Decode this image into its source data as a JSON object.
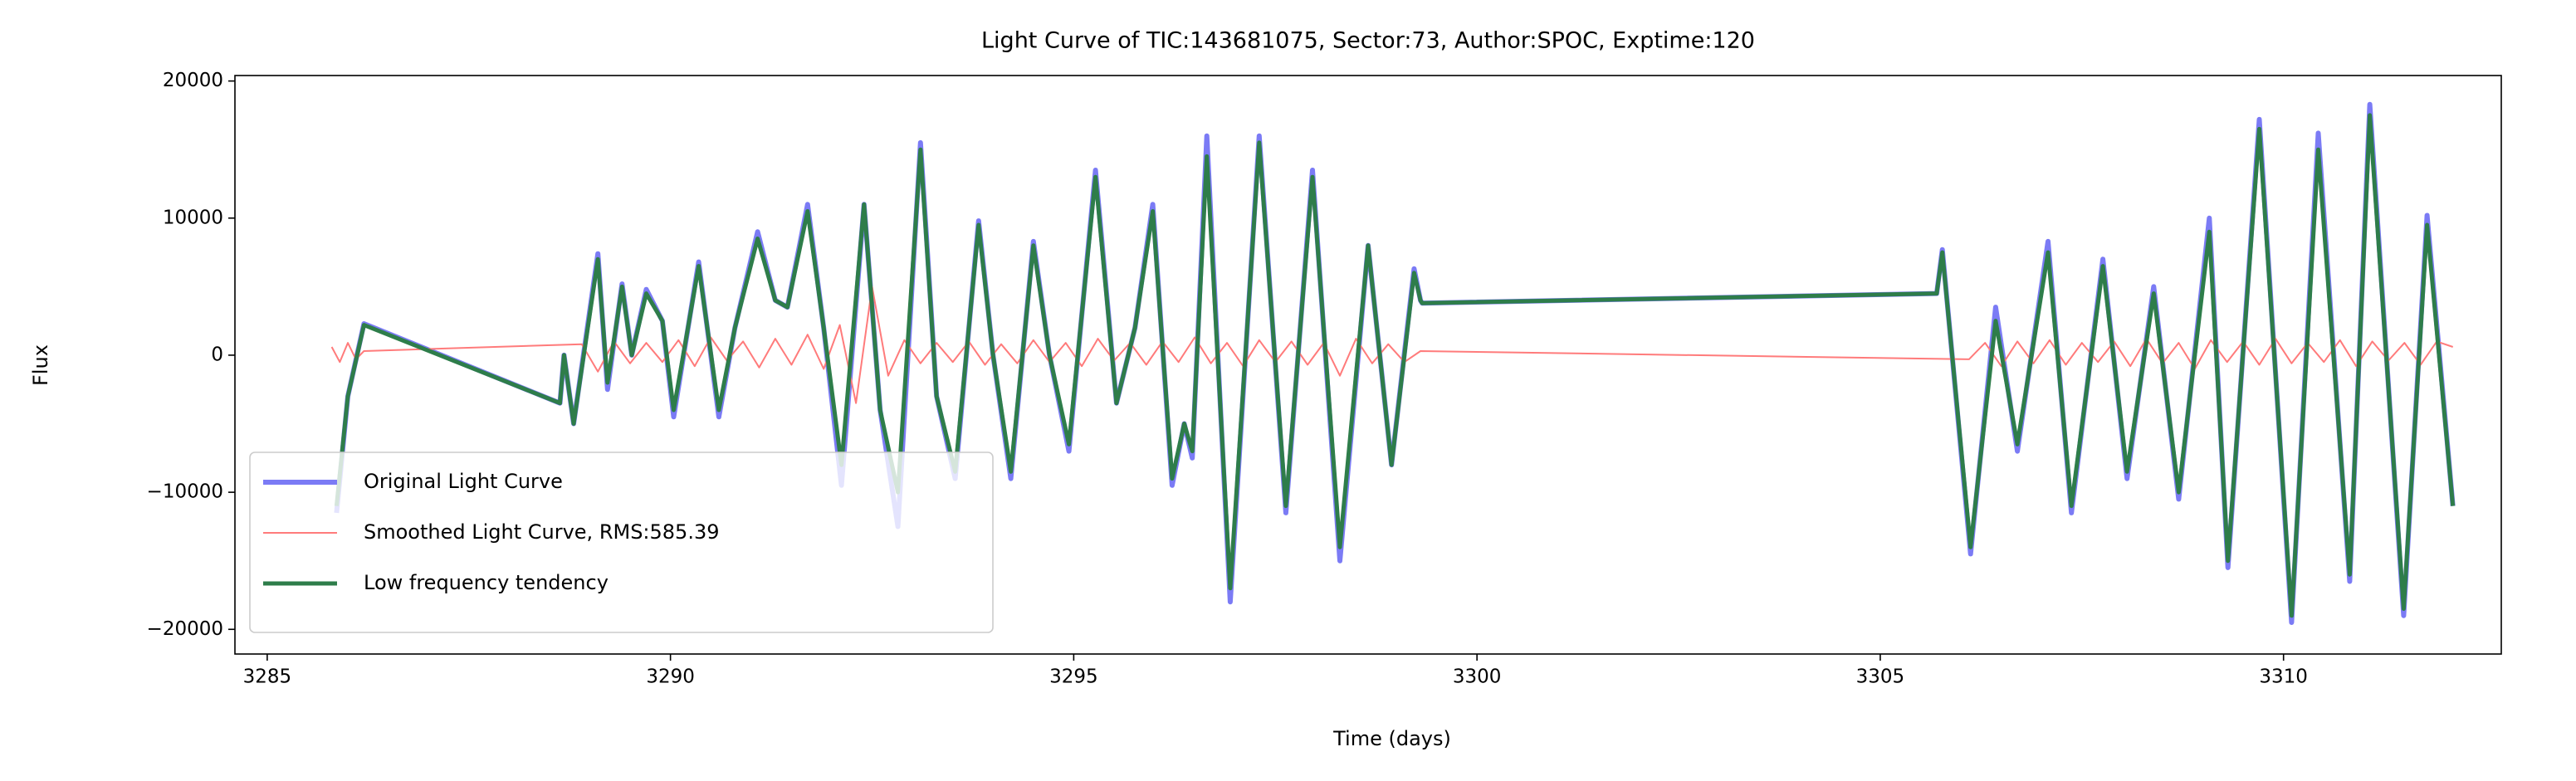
{
  "chart_data": {
    "type": "line",
    "title": "Light Curve of TIC:143681075, Sector:73, Author:SPOC, Exptime:120",
    "x_label": "Time (days)",
    "y_label": "Flux",
    "xlim": [
      3284.6,
      3312.7
    ],
    "ylim": [
      -21800,
      20400
    ],
    "xticks": [
      3285,
      3290,
      3295,
      3300,
      3305,
      3310
    ],
    "yticks": [
      {
        "value": -20000,
        "label": "−20000"
      },
      {
        "value": -10000,
        "label": "−10000"
      },
      0,
      10000,
      20000
    ],
    "grid": false,
    "legend": "lower left",
    "series": [
      {
        "name": "Original Light Curve",
        "color": "#7b7bf5",
        "width": 6,
        "x": [
          3285.86,
          3286.0,
          3286.2,
          3288.63,
          3288.68,
          3288.8,
          3289.1,
          3289.22,
          3289.4,
          3289.52,
          3289.7,
          3289.9,
          3290.04,
          3290.35,
          3290.6,
          3290.8,
          3291.08,
          3291.3,
          3291.45,
          3291.7,
          3291.9,
          3292.12,
          3292.4,
          3292.6,
          3292.82,
          3293.1,
          3293.3,
          3293.53,
          3293.82,
          3294.0,
          3294.22,
          3294.5,
          3294.7,
          3294.94,
          3295.27,
          3295.53,
          3295.76,
          3295.98,
          3296.22,
          3296.37,
          3296.47,
          3296.65,
          3296.94,
          3297.3,
          3297.63,
          3297.96,
          3298.3,
          3298.65,
          3298.94,
          3299.22,
          3299.3,
          3299.32,
          3305.7,
          3305.77,
          3306.12,
          3306.43,
          3306.7,
          3307.08,
          3307.37,
          3307.76,
          3308.06,
          3308.39,
          3308.7,
          3309.08,
          3309.31,
          3309.7,
          3310.1,
          3310.43,
          3310.82,
          3311.07,
          3311.49,
          3311.78,
          3312.1
        ],
        "values": [
          -11500,
          -3000,
          2300,
          -3500,
          0,
          -5000,
          7400,
          -2500,
          5200,
          0,
          4800,
          2500,
          -4500,
          6800,
          -4500,
          2000,
          9000,
          4000,
          3500,
          11000,
          2000,
          -9500,
          11000,
          -4000,
          -12500,
          15500,
          -3000,
          -9000,
          9800,
          0,
          -9000,
          8300,
          0,
          -7000,
          13500,
          -3500,
          2000,
          11000,
          -9500,
          -5000,
          -7500,
          16000,
          -18000,
          16000,
          -11500,
          13500,
          -15000,
          8000,
          -8000,
          6300,
          4000,
          3800,
          4500,
          7700,
          -14500,
          3500,
          -7000,
          8300,
          -11500,
          7000,
          -9000,
          5000,
          -10500,
          10000,
          -15500,
          17200,
          -19500,
          16200,
          -16500,
          18300,
          -19000,
          10200,
          -11000
        ]
      },
      {
        "name": "Smoothed Light Curve, RMS:585.39",
        "color": "#ff7b7b",
        "width": 2,
        "x": [
          3285.8,
          3285.9,
          3286.0,
          3286.1,
          3286.2,
          3288.9,
          3289.1,
          3289.3,
          3289.5,
          3289.7,
          3289.9,
          3290.1,
          3290.3,
          3290.5,
          3290.7,
          3290.9,
          3291.1,
          3291.3,
          3291.5,
          3291.7,
          3291.9,
          3292.1,
          3292.3,
          3292.5,
          3292.7,
          3292.9,
          3293.1,
          3293.3,
          3293.5,
          3293.7,
          3293.9,
          3294.1,
          3294.3,
          3294.5,
          3294.7,
          3294.9,
          3295.1,
          3295.3,
          3295.5,
          3295.7,
          3295.9,
          3296.1,
          3296.3,
          3296.5,
          3296.7,
          3296.9,
          3297.1,
          3297.3,
          3297.5,
          3297.7,
          3297.9,
          3298.1,
          3298.3,
          3298.5,
          3298.7,
          3298.9,
          3299.1,
          3299.3,
          3306.1,
          3306.3,
          3306.5,
          3306.7,
          3306.9,
          3307.1,
          3307.3,
          3307.5,
          3307.7,
          3307.9,
          3308.1,
          3308.3,
          3308.5,
          3308.7,
          3308.9,
          3309.1,
          3309.3,
          3309.5,
          3309.7,
          3309.9,
          3310.1,
          3310.3,
          3310.5,
          3310.7,
          3310.9,
          3311.1,
          3311.3,
          3311.5,
          3311.7,
          3311.9,
          3312.1
        ],
        "values": [
          600,
          -500,
          900,
          -300,
          300,
          800,
          -1200,
          1000,
          -600,
          900,
          -500,
          1100,
          -800,
          1300,
          -400,
          1000,
          -900,
          1200,
          -700,
          1500,
          -1000,
          2200,
          -3500,
          5000,
          -1500,
          1100,
          -600,
          900,
          -500,
          1000,
          -700,
          800,
          -600,
          1100,
          -500,
          900,
          -800,
          1200,
          -400,
          900,
          -700,
          1000,
          -500,
          1300,
          -600,
          900,
          -800,
          1100,
          -500,
          1000,
          -700,
          900,
          -1500,
          1200,
          -600,
          800,
          -500,
          300,
          -300,
          900,
          -800,
          1000,
          -600,
          1100,
          -700,
          900,
          -500,
          1000,
          -800,
          1200,
          -600,
          900,
          -1000,
          1100,
          -500,
          1000,
          -700,
          1200,
          -600,
          900,
          -500,
          1100,
          -800,
          1000,
          -400,
          900,
          -700,
          1000,
          600
        ]
      },
      {
        "name": "Low frequency tendency",
        "color": "#2e7d4a",
        "width": 5,
        "x": [
          3285.86,
          3286.0,
          3286.2,
          3288.63,
          3288.68,
          3288.8,
          3289.1,
          3289.22,
          3289.4,
          3289.52,
          3289.7,
          3289.9,
          3290.04,
          3290.35,
          3290.6,
          3290.8,
          3291.08,
          3291.3,
          3291.45,
          3291.7,
          3291.9,
          3292.12,
          3292.4,
          3292.6,
          3292.82,
          3293.1,
          3293.3,
          3293.53,
          3293.82,
          3294.0,
          3294.22,
          3294.5,
          3294.7,
          3294.94,
          3295.27,
          3295.53,
          3295.76,
          3295.98,
          3296.22,
          3296.37,
          3296.47,
          3296.65,
          3296.94,
          3297.3,
          3297.63,
          3297.96,
          3298.3,
          3298.65,
          3298.94,
          3299.22,
          3299.3,
          3299.32,
          3305.7,
          3305.77,
          3306.12,
          3306.43,
          3306.7,
          3307.08,
          3307.37,
          3307.76,
          3308.06,
          3308.39,
          3308.7,
          3309.08,
          3309.31,
          3309.7,
          3310.1,
          3310.43,
          3310.82,
          3311.07,
          3311.49,
          3311.78,
          3312.1
        ],
        "values": [
          -11000,
          -3000,
          2200,
          -3500,
          0,
          -5000,
          7000,
          -2000,
          5000,
          0,
          4500,
          2500,
          -4000,
          6500,
          -4000,
          2000,
          8500,
          4000,
          3500,
          10500,
          2000,
          -8000,
          11000,
          -4000,
          -10000,
          15000,
          -3000,
          -8500,
          9500,
          0,
          -8500,
          8000,
          0,
          -6500,
          13000,
          -3500,
          2000,
          10500,
          -9000,
          -5000,
          -7000,
          14500,
          -17000,
          15500,
          -11000,
          13000,
          -14000,
          8000,
          -8000,
          6000,
          4000,
          3800,
          4500,
          7500,
          -14000,
          2500,
          -6500,
          7500,
          -11000,
          6500,
          -8500,
          4500,
          -10000,
          9000,
          -15000,
          16500,
          -19000,
          15000,
          -16000,
          17500,
          -18500,
          9500,
          -11000
        ]
      }
    ]
  }
}
